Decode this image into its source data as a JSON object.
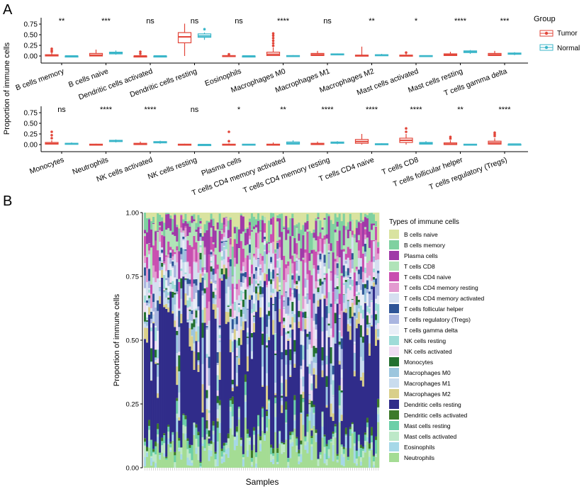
{
  "panel_labels": {
    "a": "A",
    "b": "B"
  },
  "chart_data": [
    {
      "type": "box",
      "ylabel": "Proportion of immune cells",
      "yticks": [
        "0.00",
        "0.25",
        "0.50",
        "0.75"
      ],
      "ylim": [
        0,
        0.8
      ],
      "legend": {
        "title": "Group",
        "placement": "right",
        "entries": [
          {
            "name": "Tumor",
            "color": "#e2463a"
          },
          {
            "name": "Normal",
            "color": "#3bb6c9"
          }
        ]
      },
      "rows": [
        [
          {
            "label": "B cells memory",
            "sig": "**",
            "tumor": [
              0,
              0,
              0.01,
              0.03,
              0.07
            ],
            "tumor_out": [
              0.1,
              0.13,
              0.17
            ],
            "normal": [
              0,
              0,
              0,
              0,
              0
            ]
          },
          {
            "label": "B cells naive",
            "sig": "***",
            "tumor": [
              0,
              0,
              0.02,
              0.06,
              0.15
            ],
            "tumor_out": [],
            "normal": [
              0.03,
              0.05,
              0.07,
              0.09,
              0.13
            ]
          },
          {
            "label": "Dendritic cells activated",
            "sig": "ns",
            "tumor": [
              0,
              0,
              0,
              0,
              0.02
            ],
            "tumor_out": [
              0.05,
              0.1
            ],
            "normal": [
              0,
              0,
              0,
              0,
              0
            ]
          },
          {
            "label": "Dendritic cells resting",
            "sig": "ns",
            "tumor": [
              0,
              0.31,
              0.45,
              0.55,
              0.76
            ],
            "tumor_out": [],
            "normal": [
              0.38,
              0.44,
              0.47,
              0.52,
              0.55
            ],
            "normal_out": [
              0.63
            ]
          },
          {
            "label": "Eosinophils",
            "sig": "ns",
            "tumor": [
              0,
              0,
              0,
              0.01,
              0.02
            ],
            "tumor_out": [
              0.04
            ],
            "normal": [
              0,
              0,
              0,
              0,
              0
            ]
          },
          {
            "label": "Macrophages M0",
            "sig": "****",
            "tumor": [
              0,
              0.01,
              0.04,
              0.09,
              0.2
            ],
            "tumor_out": [
              0.24,
              0.3,
              0.36,
              0.42,
              0.48,
              0.53
            ],
            "normal": [
              0,
              0,
              0,
              0.01,
              0.02
            ]
          },
          {
            "label": "Macrophages M1",
            "sig": "ns",
            "tumor": [
              0,
              0.01,
              0.03,
              0.06,
              0.12
            ],
            "tumor_out": [],
            "normal": [
              0.02,
              0.03,
              0.04,
              0.05,
              0.06
            ]
          },
          {
            "label": "Macrophages M2",
            "sig": "**",
            "tumor": [
              0,
              0,
              0.01,
              0.02,
              0.22
            ],
            "tumor_out": [],
            "normal": [
              0,
              0.01,
              0.02,
              0.03,
              0.05
            ]
          },
          {
            "label": "Mast cells activated",
            "sig": "*",
            "tumor": [
              0,
              0,
              0.01,
              0.02,
              0.05
            ],
            "tumor_out": [
              0.08
            ],
            "normal": [
              0,
              0,
              0,
              0.01,
              0.01
            ]
          },
          {
            "label": "Mast cells resting",
            "sig": "****",
            "tumor": [
              0,
              0.01,
              0.03,
              0.05,
              0.1
            ],
            "tumor_out": [],
            "normal": [
              0.05,
              0.08,
              0.1,
              0.12,
              0.14
            ]
          },
          {
            "label": "T cells gamma delta",
            "sig": "***",
            "tumor": [
              0,
              0.01,
              0.03,
              0.06,
              0.12
            ],
            "tumor_out": [],
            "normal": [
              0.02,
              0.04,
              0.05,
              0.07,
              0.09
            ]
          }
        ],
        [
          {
            "label": "Monocytes",
            "sig": "ns",
            "tumor": [
              0,
              0.01,
              0.02,
              0.05,
              0.1
            ],
            "tumor_out": [
              0.15,
              0.22,
              0.3
            ],
            "normal": [
              0,
              0.01,
              0.02,
              0.03,
              0.05
            ]
          },
          {
            "label": "Neutrophils",
            "sig": "****",
            "tumor": [
              0,
              0,
              0,
              0.01,
              0.02
            ],
            "tumor_out": [],
            "normal": [
              0.05,
              0.07,
              0.09,
              0.1,
              0.12
            ]
          },
          {
            "label": "NK cells activated",
            "sig": "****",
            "tumor": [
              0,
              0,
              0.01,
              0.03,
              0.07
            ],
            "tumor_out": [],
            "normal": [
              0.02,
              0.04,
              0.05,
              0.07,
              0.09
            ]
          },
          {
            "label": "NK cells resting",
            "sig": "ns",
            "tumor": [
              0,
              0,
              0,
              0.01,
              0.02
            ],
            "tumor_out": [],
            "normal": [
              0,
              0,
              0,
              0,
              0.01
            ]
          },
          {
            "label": "Plasma cells",
            "sig": "*",
            "tumor": [
              0,
              0,
              0,
              0.01,
              0.03
            ],
            "tumor_out": [
              0.08,
              0.3
            ],
            "normal": [
              0,
              0,
              0,
              0.01,
              0.01
            ]
          },
          {
            "label": "T cells CD4 memory activated",
            "sig": "**",
            "tumor": [
              0,
              0,
              0,
              0.01,
              0.05
            ],
            "tumor_out": [],
            "normal": [
              0,
              0.01,
              0.03,
              0.06,
              0.1
            ]
          },
          {
            "label": "T cells CD4 memory resting",
            "sig": "****",
            "tumor": [
              0,
              0,
              0.01,
              0.03,
              0.07
            ],
            "tumor_out": [],
            "normal": [
              0.01,
              0.03,
              0.05,
              0.06,
              0.08
            ]
          },
          {
            "label": "T cells CD4 naive",
            "sig": "****",
            "tumor": [
              0,
              0.03,
              0.07,
              0.12,
              0.25
            ],
            "tumor_out": [],
            "normal": [
              0,
              0,
              0.01,
              0.02,
              0.03
            ]
          },
          {
            "label": "T cells CD8",
            "sig": "****",
            "tumor": [
              0,
              0.05,
              0.1,
              0.15,
              0.25
            ],
            "tumor_out": [
              0.3,
              0.38
            ],
            "normal": [
              0,
              0.01,
              0.03,
              0.05,
              0.08
            ]
          },
          {
            "label": "T cells follicular helper",
            "sig": "**",
            "tumor": [
              0,
              0,
              0.01,
              0.04,
              0.1
            ],
            "tumor_out": [
              0.14,
              0.18
            ],
            "normal": [
              0,
              0,
              0,
              0.01,
              0.01
            ]
          },
          {
            "label": "T cells regulatory (Tregs)",
            "sig": "****",
            "tumor": [
              0,
              0.01,
              0.04,
              0.08,
              0.15
            ],
            "tumor_out": [
              0.2,
              0.24,
              0.28
            ],
            "normal": [
              0,
              0,
              0.01,
              0.01,
              0.02
            ]
          }
        ]
      ]
    },
    {
      "type": "stacked_bar",
      "xlabel": "Samples",
      "ylabel": "Proportion of immune cells",
      "yticks": [
        "0.00",
        "0.25",
        "0.50",
        "0.75",
        "1.00"
      ],
      "ylim": [
        0,
        1
      ],
      "n_samples": 110,
      "legend": {
        "title": "Types of immune cells",
        "placement": "right"
      },
      "cell_types": [
        {
          "name": "B cells naive",
          "color": "#d9e3a0",
          "mean": 0.03
        },
        {
          "name": "B cells memory",
          "color": "#7fd1a0",
          "mean": 0.03
        },
        {
          "name": "Plasma cells",
          "color": "#a03aa8",
          "mean": 0.04
        },
        {
          "name": "T cells CD8",
          "color": "#b0e3b8",
          "mean": 0.05
        },
        {
          "name": "T cells CD4 naive",
          "color": "#c94fb0",
          "mean": 0.05
        },
        {
          "name": "T cells CD4 memory resting",
          "color": "#e39ad0",
          "mean": 0.03
        },
        {
          "name": "T cells CD4 memory activated",
          "color": "#d5dff0",
          "mean": 0.04
        },
        {
          "name": "T cells follicular helper",
          "color": "#2e5597",
          "mean": 0.02
        },
        {
          "name": "T cells regulatory (Tregs)",
          "color": "#a9b5e0",
          "mean": 0.03
        },
        {
          "name": "T cells gamma delta",
          "color": "#e9eef7",
          "mean": 0.03
        },
        {
          "name": "NK cells resting",
          "color": "#9fdcd8",
          "mean": 0.02
        },
        {
          "name": "NK cells activated",
          "color": "#eedcf2",
          "mean": 0.03
        },
        {
          "name": "Monocytes",
          "color": "#22702f",
          "mean": 0.02
        },
        {
          "name": "Macrophages M0",
          "color": "#9cc6de",
          "mean": 0.03
        },
        {
          "name": "Macrophages M1",
          "color": "#c9dcee",
          "mean": 0.03
        },
        {
          "name": "Macrophages M2",
          "color": "#d9cf8a",
          "mean": 0.03
        },
        {
          "name": "Dendritic cells resting",
          "color": "#302c8a",
          "mean": 0.42
        },
        {
          "name": "Dendritic cells activated",
          "color": "#3d7a2a",
          "mean": 0.01
        },
        {
          "name": "Mast cells resting",
          "color": "#6ccfa8",
          "mean": 0.02
        },
        {
          "name": "Mast cells activated",
          "color": "#bde8c8",
          "mean": 0.02
        },
        {
          "name": "Eosinophils",
          "color": "#a6d8e8",
          "mean": 0.02
        },
        {
          "name": "Neutrophils",
          "color": "#a4dc94",
          "mean": 0.06
        }
      ]
    }
  ]
}
